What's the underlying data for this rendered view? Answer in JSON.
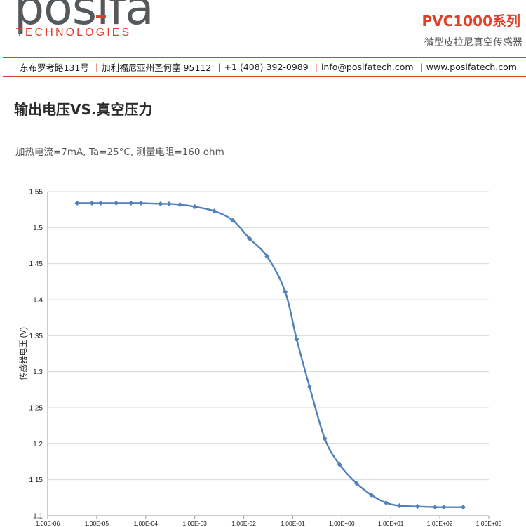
{
  "header": {
    "logo_word": "posifa",
    "logo_sub": "TECHNOLOGIES",
    "product_title": "PVC1000系列",
    "product_subtitle": "微型皮拉尼真空传感器"
  },
  "contact": {
    "address": "东布罗考路131号",
    "city": "加利福尼亚州圣何塞 95112",
    "phone": "+1 (408) 392-0989",
    "email": "info@posifatech.com",
    "website": "www.posifatech.com",
    "separator": "|"
  },
  "section": {
    "title": "输出电压VS.真空压力",
    "conditions": "加热电流=7mA, Ta=25°C, 测量电阻=160 ohm"
  },
  "colors": {
    "accent": "#e0402b",
    "series": "#4f81bd",
    "grid": "#d9d9d9"
  },
  "chart_data": {
    "type": "line",
    "title": "",
    "xlabel": "",
    "ylabel": "传感器电压 (V)",
    "xscale": "log",
    "xlim": [
      1e-06,
      1000
    ],
    "ylim": [
      1.1,
      1.55
    ],
    "grid": true,
    "yticks": [
      1.1,
      1.15,
      1.2,
      1.25,
      1.3,
      1.35,
      1.4,
      1.45,
      1.5,
      1.55
    ],
    "ytick_labels": [
      "1.1",
      "1.15",
      "1.2",
      "1.25",
      "1.3",
      "1.35",
      "1.4",
      "1.45",
      "1.5",
      "1.55"
    ],
    "xticks": [
      1e-06,
      1e-05,
      0.0001,
      0.001,
      0.01,
      0.1,
      1,
      10,
      100,
      1000
    ],
    "xtick_labels": [
      "1.00E-06",
      "1.00E-05",
      "1.00E-04",
      "1.00E-03",
      "1.00E-02",
      "1.00E-01",
      "1.00E+00",
      "1.00E+01",
      "1.00E+02",
      "1.00E+03"
    ],
    "series": [
      {
        "x": [
          4e-06,
          8e-06,
          1.2e-05,
          2.5e-05,
          5e-05,
          8e-05,
          0.0002,
          0.0003,
          0.0005,
          0.001,
          0.0025,
          0.006,
          0.013,
          0.03,
          0.07,
          0.12,
          0.22,
          0.45,
          0.9,
          2.0,
          4.0,
          8.0,
          15,
          35,
          80,
          120,
          300
        ],
        "y": [
          1.534,
          1.534,
          1.534,
          1.534,
          1.534,
          1.534,
          1.533,
          1.533,
          1.532,
          1.529,
          1.523,
          1.51,
          1.485,
          1.46,
          1.411,
          1.345,
          1.279,
          1.207,
          1.171,
          1.145,
          1.129,
          1.118,
          1.114,
          1.113,
          1.112,
          1.112,
          1.112
        ]
      }
    ]
  }
}
